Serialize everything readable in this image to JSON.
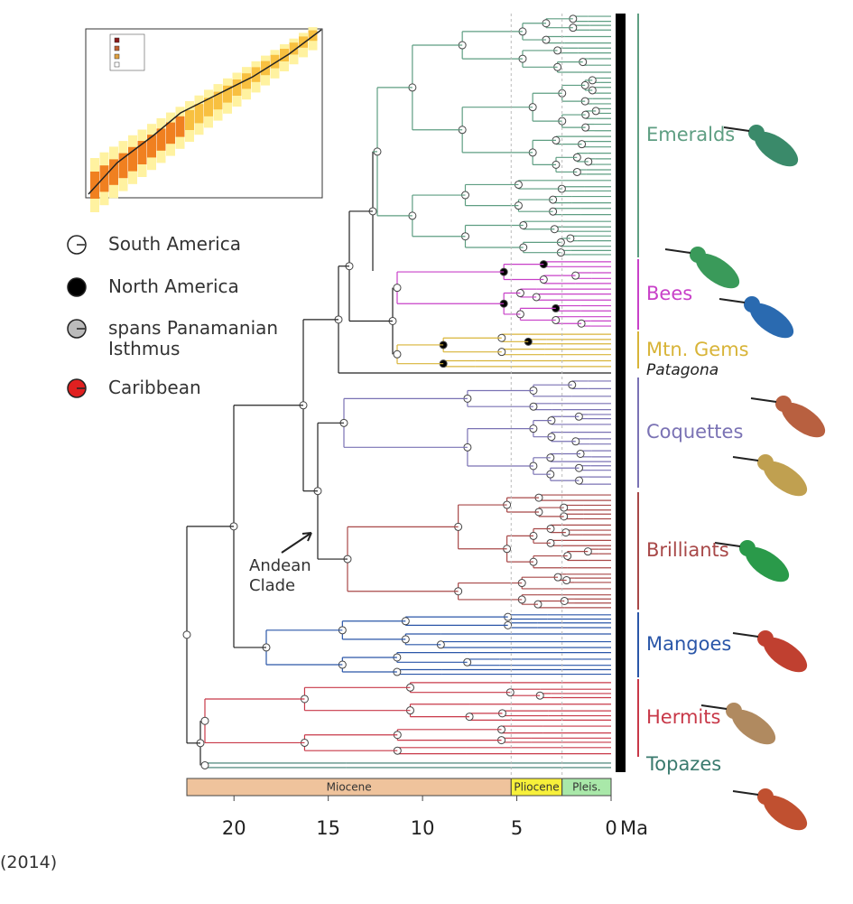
{
  "legend": {
    "items": [
      {
        "label": "South America",
        "color": "#ffffff"
      },
      {
        "label": "North America",
        "color": "#000000"
      },
      {
        "label": "spans Panamanian Isthmus",
        "color": "#bbbbbb"
      },
      {
        "label": "Caribbean",
        "color": "#e02020"
      }
    ]
  },
  "clades": [
    {
      "label": "Emeralds",
      "color": "#5e9e82"
    },
    {
      "label": "Bees",
      "color": "#c840c8"
    },
    {
      "label": "Mtn. Gems",
      "color": "#d8b438"
    },
    {
      "label": "Patagona",
      "color": "#222222"
    },
    {
      "label": "Coquettes",
      "color": "#7a72b4"
    },
    {
      "label": "Brilliants",
      "color": "#a84848"
    },
    {
      "label": "Mangoes",
      "color": "#2a56a8"
    },
    {
      "label": "Hermits",
      "color": "#c83848"
    },
    {
      "label": "Topazes",
      "color": "#3a7a6e"
    }
  ],
  "annotation": "Andean Clade",
  "time_axis": {
    "xlim": [
      22.5,
      0
    ],
    "xticks": [
      20,
      15,
      10,
      5,
      0
    ],
    "unit": "Ma",
    "epochs": [
      {
        "label": "Miocene",
        "range": [
          22.5,
          5.3
        ],
        "color": "#efc39c"
      },
      {
        "label": "Pliocene",
        "range": [
          5.3,
          2.6
        ],
        "color": "#f7f03a"
      },
      {
        "label": "Pleis.",
        "range": [
          2.6,
          0
        ],
        "color": "#a9e8a9"
      }
    ]
  },
  "citation": "(2014)"
}
